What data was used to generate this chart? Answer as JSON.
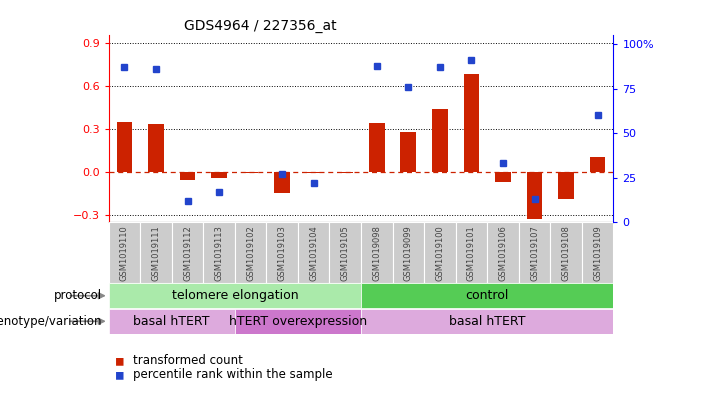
{
  "title": "GDS4964 / 227356_at",
  "samples": [
    "GSM1019110",
    "GSM1019111",
    "GSM1019112",
    "GSM1019113",
    "GSM1019102",
    "GSM1019103",
    "GSM1019104",
    "GSM1019105",
    "GSM1019098",
    "GSM1019099",
    "GSM1019100",
    "GSM1019101",
    "GSM1019106",
    "GSM1019107",
    "GSM1019108",
    "GSM1019109"
  ],
  "transformed_count": [
    0.35,
    0.33,
    -0.06,
    -0.04,
    -0.01,
    -0.15,
    -0.01,
    -0.01,
    0.34,
    0.28,
    0.44,
    0.68,
    -0.07,
    -0.33,
    -0.19,
    0.1
  ],
  "percentile_rank": [
    0.87,
    0.86,
    0.12,
    0.17,
    null,
    0.27,
    0.22,
    null,
    0.88,
    0.76,
    0.87,
    0.91,
    0.33,
    0.13,
    null,
    0.6
  ],
  "ylim_left": [
    -0.35,
    0.95
  ],
  "ylim_right": [
    0,
    105
  ],
  "yticks_left": [
    -0.3,
    0.0,
    0.3,
    0.6,
    0.9
  ],
  "yticks_right": [
    0,
    25,
    50,
    75,
    100
  ],
  "bar_color": "#cc2200",
  "dot_color": "#2244cc",
  "zero_line_color": "#cc2200",
  "protocol_groups": [
    {
      "label": "telomere elongation",
      "start": 0,
      "end": 7,
      "color": "#aaeaaa"
    },
    {
      "label": "control",
      "start": 8,
      "end": 15,
      "color": "#55cc55"
    }
  ],
  "genotype_groups": [
    {
      "label": "basal hTERT",
      "start": 0,
      "end": 3,
      "color": "#ddaadd"
    },
    {
      "label": "hTERT overexpression",
      "start": 4,
      "end": 7,
      "color": "#cc77cc"
    },
    {
      "label": "basal hTERT",
      "start": 8,
      "end": 15,
      "color": "#ddaadd"
    }
  ],
  "legend_labels": [
    "transformed count",
    "percentile rank within the sample"
  ],
  "legend_colors": [
    "#cc2200",
    "#2244cc"
  ],
  "tick_label_color": "#444444",
  "xtick_bg_color": "#cccccc",
  "protocol_label": "protocol",
  "genotype_label": "genotype/variation"
}
